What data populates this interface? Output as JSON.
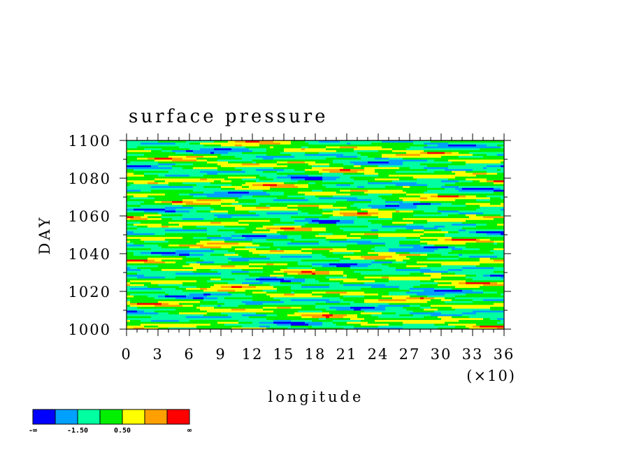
{
  "chart_data": {
    "type": "heatmap",
    "title": "surface pressure",
    "xlabel": "longitude",
    "ylabel": "DAY",
    "x_multiplier_label": "(×10)",
    "xlim": [
      0,
      36
    ],
    "ylim": [
      1000,
      1100
    ],
    "x_ticks": [
      "0",
      "3",
      "6",
      "9",
      "12",
      "15",
      "18",
      "21",
      "24",
      "27",
      "30",
      "33",
      "36"
    ],
    "y_ticks": [
      "1000",
      "1020",
      "1040",
      "1060",
      "1080",
      "1100"
    ],
    "colorbar": {
      "colors": [
        "#0000ff",
        "#00a0ff",
        "#00ffa0",
        "#00f000",
        "#ffff00",
        "#ffa000",
        "#ff0000"
      ],
      "labels": [
        "-∞",
        "-1.50",
        "0.50",
        "∞"
      ]
    },
    "grid": false,
    "legend": "bottom-left colorbar"
  }
}
